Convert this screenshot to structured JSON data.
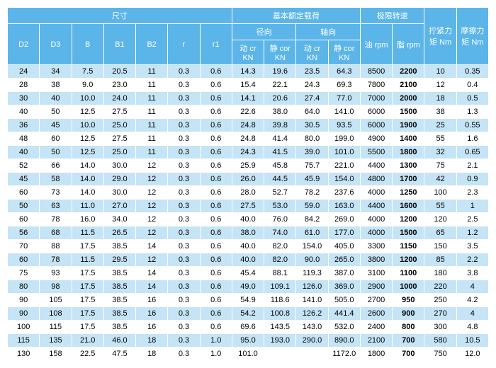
{
  "header": {
    "top": [
      "尺寸",
      "基本额定载荷",
      "极限转速",
      "拧紧力矩 Nm",
      "摩擦力矩 Nm"
    ],
    "mid": [
      "径向",
      "轴向",
      "油 rpm",
      "脂 rpm"
    ],
    "leaf": [
      "D2",
      "D3",
      "B",
      "B1",
      "B2",
      "r",
      "r1",
      "动 cr KN",
      "静 cor KN",
      "动 cr KN",
      "静 cor KN"
    ]
  },
  "colors": {
    "header_bg": "#5bb5e8",
    "header_fg": "#ffffff",
    "row_odd": "#c5e4f5",
    "row_even": "#ffffff"
  },
  "bold_col": 12,
  "rows": [
    [
      "24",
      "34",
      "7.5",
      "20.5",
      "11",
      "0.3",
      "0.6",
      "14.3",
      "19.6",
      "23.5",
      "64.3",
      "8500",
      "2200",
      "10",
      "0.35"
    ],
    [
      "28",
      "38",
      "9.0",
      "23.0",
      "11",
      "0.3",
      "0.6",
      "15.4",
      "22.1",
      "24.3",
      "69.3",
      "7800",
      "2100",
      "12",
      "0.4"
    ],
    [
      "30",
      "40",
      "10.0",
      "24.0",
      "11",
      "0.3",
      "0.6",
      "14.1",
      "20.6",
      "27.4",
      "77.0",
      "7000",
      "2000",
      "18",
      "0.5"
    ],
    [
      "40",
      "50",
      "12.5",
      "27.5",
      "11",
      "0.3",
      "0.6",
      "22.6",
      "38.0",
      "64.0",
      "141.0",
      "6000",
      "1500",
      "38",
      "1.3"
    ],
    [
      "36",
      "45",
      "10.0",
      "25.0",
      "11",
      "0.3",
      "0.6",
      "24.8",
      "39.8",
      "30.5",
      "93.5",
      "6000",
      "1900",
      "25",
      "0.55"
    ],
    [
      "48",
      "60",
      "12.5",
      "27.5",
      "11",
      "0.3",
      "0.6",
      "24.8",
      "41.4",
      "80.0",
      "199.0",
      "4900",
      "1400",
      "55",
      "1.6"
    ],
    [
      "40",
      "50",
      "12.5",
      "25.0",
      "11",
      "0.3",
      "0.6",
      "24.3",
      "41.5",
      "39.0",
      "101.0",
      "5500",
      "1800",
      "32",
      "0.65"
    ],
    [
      "52",
      "66",
      "14.0",
      "30.0",
      "12",
      "0.3",
      "0.6",
      "25.9",
      "45.8",
      "75.7",
      "221.0",
      "4400",
      "1300",
      "75",
      "2.1"
    ],
    [
      "45",
      "58",
      "14.0",
      "29.0",
      "12",
      "0.3",
      "0.6",
      "26.0",
      "44.5",
      "45.9",
      "154.0",
      "4800",
      "1700",
      "42",
      "0.9"
    ],
    [
      "60",
      "73",
      "14.0",
      "30.0",
      "12",
      "0.3",
      "0.6",
      "28.0",
      "52.7",
      "78.2",
      "237.6",
      "4000",
      "1250",
      "100",
      "2.3"
    ],
    [
      "50",
      "63",
      "11.0",
      "27.0",
      "12",
      "0.3",
      "0.6",
      "27.5",
      "53.0",
      "59.0",
      "163.0",
      "4400",
      "1600",
      "55",
      "1"
    ],
    [
      "60",
      "78",
      "16.0",
      "34.0",
      "12",
      "0.3",
      "0.6",
      "40.0",
      "76.0",
      "84.2",
      "269.0",
      "4000",
      "1200",
      "120",
      "2.5"
    ],
    [
      "56",
      "68",
      "11.5",
      "26.5",
      "12",
      "0.3",
      "0.6",
      "38.0",
      "74.0",
      "61.0",
      "177.0",
      "4000",
      "1500",
      "65",
      "1.2"
    ],
    [
      "70",
      "88",
      "17.5",
      "38.5",
      "14",
      "0.3",
      "0.6",
      "40.0",
      "82.0",
      "154.0",
      "405.0",
      "3300",
      "1150",
      "150",
      "3.5"
    ],
    [
      "60",
      "78",
      "11.5",
      "29.5",
      "12",
      "0.3",
      "0.6",
      "40.0",
      "82.0",
      "90.0",
      "265.0",
      "3800",
      "1200",
      "85",
      "2.2"
    ],
    [
      "75",
      "93",
      "17.5",
      "38.5",
      "14",
      "0.3",
      "0.6",
      "45.4",
      "88.1",
      "119.3",
      "387.0",
      "3100",
      "1100",
      "180",
      "3.8"
    ],
    [
      "80",
      "98",
      "17.5",
      "38.5",
      "14",
      "0.3",
      "0.6",
      "49.0",
      "109.1",
      "126.0",
      "369.0",
      "2900",
      "1000",
      "220",
      "4"
    ],
    [
      "90",
      "105",
      "17.5",
      "38.5",
      "16",
      "0.3",
      "0.6",
      "54.9",
      "118.6",
      "141.0",
      "505.0",
      "2700",
      "950",
      "250",
      "4.2"
    ],
    [
      "90",
      "108",
      "17.5",
      "38.5",
      "16",
      "0.3",
      "0.6",
      "54.2",
      "100.8",
      "126.2",
      "441.4",
      "2600",
      "900",
      "270",
      "4"
    ],
    [
      "100",
      "115",
      "17.5",
      "38.5",
      "16",
      "0.3",
      "0.6",
      "69.6",
      "143.5",
      "143.0",
      "532.0",
      "2400",
      "800",
      "300",
      "4.8"
    ],
    [
      "115",
      "135",
      "21.0",
      "46.0",
      "18",
      "0.3",
      "1.0",
      "95.0",
      "193.0",
      "290.0",
      "890.0",
      "2100",
      "700",
      "580",
      "10.5"
    ],
    [
      "130",
      "158",
      "22.5",
      "47.5",
      "18",
      "0.3",
      "1.0",
      "101.0",
      "",
      "",
      "1172.0",
      "1800",
      "700",
      "750",
      "12.0"
    ]
  ]
}
